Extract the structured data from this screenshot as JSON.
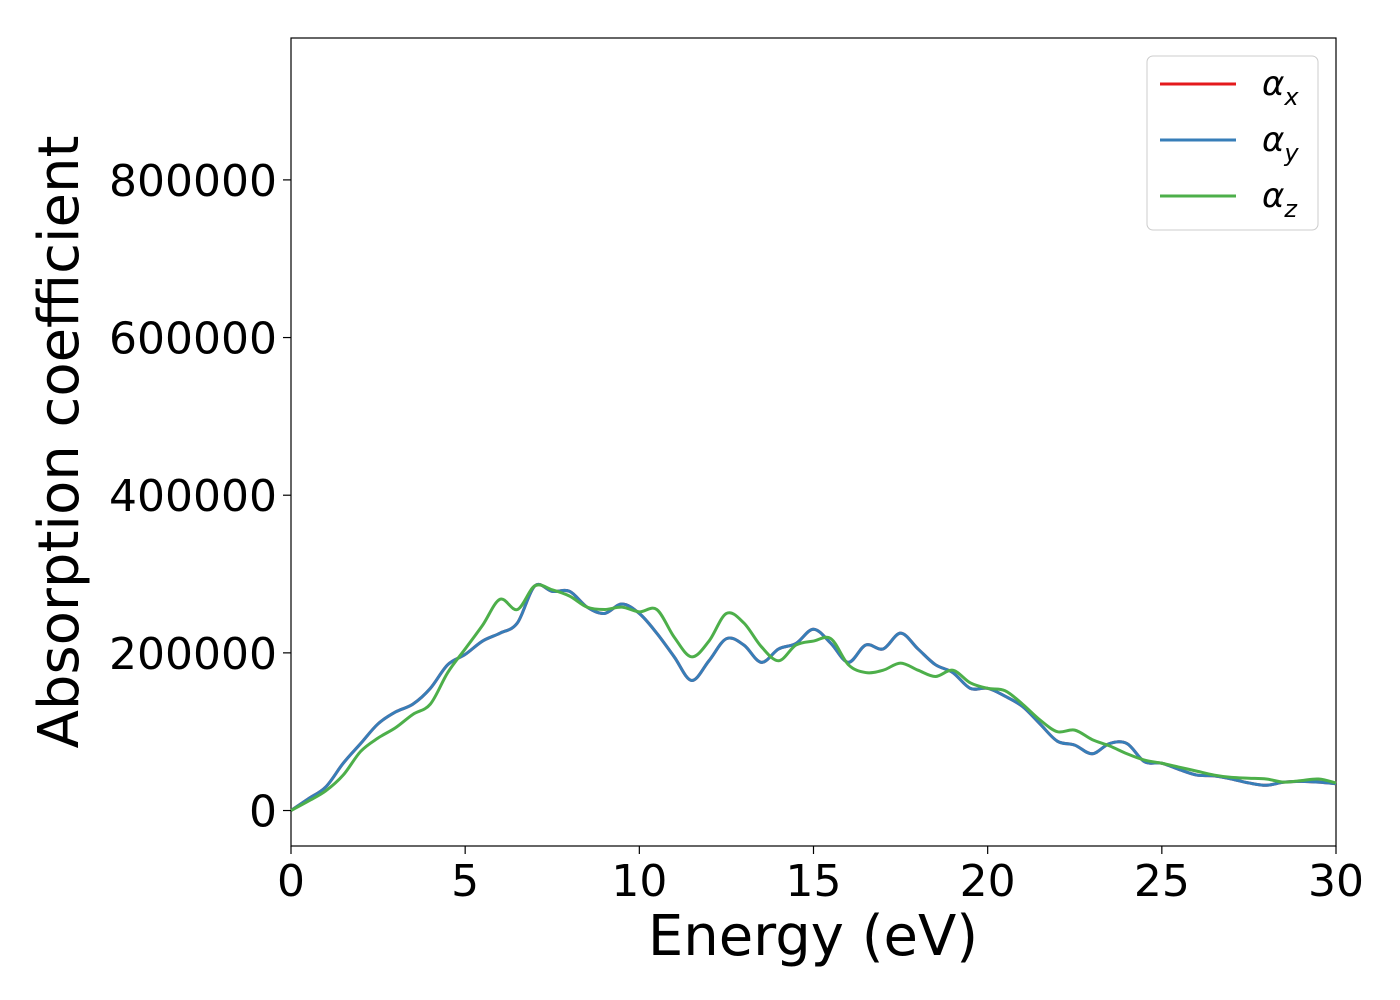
{
  "chart_data": {
    "type": "line",
    "xlabel": "Energy (eV)",
    "ylabel": "Absorption coefficient",
    "xlim": [
      0,
      30
    ],
    "ylim": [
      -45000,
      980000
    ],
    "xticks": [
      0,
      5,
      10,
      15,
      20,
      25,
      30
    ],
    "xtick_labels": [
      "0",
      "5",
      "10",
      "15",
      "20",
      "25",
      "30"
    ],
    "yticks": [
      0,
      200000,
      400000,
      600000,
      800000
    ],
    "ytick_labels": [
      "0",
      "200000",
      "400000",
      "600000",
      "800000"
    ],
    "grid": false,
    "legend": {
      "position": "top-right",
      "entries": [
        {
          "symbol": "α",
          "sub": "x",
          "color": "#e41a1c"
        },
        {
          "symbol": "α",
          "sub": "y",
          "color": "#377eb8"
        },
        {
          "symbol": "α",
          "sub": "z",
          "color": "#4daf4a"
        }
      ]
    },
    "x": [
      0,
      0.5,
      1,
      1.5,
      2,
      2.5,
      3,
      3.5,
      4,
      4.5,
      5,
      5.5,
      6,
      6.5,
      7,
      7.5,
      8,
      8.5,
      9,
      9.5,
      10,
      10.5,
      11,
      11.5,
      12,
      12.5,
      13,
      13.5,
      14,
      14.5,
      15,
      15.5,
      16,
      16.5,
      17,
      17.5,
      18,
      18.5,
      19,
      19.5,
      20,
      20.5,
      21,
      21.5,
      22,
      22.5,
      23,
      23.5,
      24,
      24.5,
      25,
      25.5,
      26,
      26.5,
      27,
      27.5,
      28,
      28.5,
      29,
      29.5,
      30
    ],
    "series": [
      {
        "name": "α_x",
        "color": "#e41a1c",
        "values": [
          0,
          15000,
          30000,
          60000,
          85000,
          110000,
          125000,
          135000,
          155000,
          185000,
          198000,
          215000,
          225000,
          238000,
          285000,
          278000,
          278000,
          258000,
          250000,
          262000,
          250000,
          225000,
          195000,
          165000,
          190000,
          218000,
          210000,
          188000,
          205000,
          212000,
          230000,
          212000,
          188000,
          210000,
          205000,
          225000,
          205000,
          185000,
          175000,
          155000,
          155000,
          145000,
          132000,
          110000,
          88000,
          83000,
          72000,
          85000,
          85000,
          62000,
          60000,
          52000,
          45000,
          44000,
          40000,
          35000,
          32000,
          36000,
          37000,
          36000,
          34000
        ]
      },
      {
        "name": "α_y",
        "color": "#377eb8",
        "values": [
          0,
          15000,
          30000,
          60000,
          85000,
          110000,
          125000,
          135000,
          155000,
          185000,
          198000,
          215000,
          225000,
          238000,
          285000,
          278000,
          278000,
          258000,
          250000,
          262000,
          250000,
          225000,
          195000,
          165000,
          190000,
          218000,
          210000,
          188000,
          205000,
          212000,
          230000,
          212000,
          188000,
          210000,
          205000,
          225000,
          205000,
          185000,
          175000,
          155000,
          155000,
          145000,
          132000,
          110000,
          88000,
          83000,
          72000,
          85000,
          85000,
          62000,
          60000,
          52000,
          45000,
          44000,
          40000,
          35000,
          32000,
          36000,
          37000,
          36000,
          34000
        ]
      },
      {
        "name": "α_z",
        "color": "#4daf4a",
        "values": [
          0,
          12000,
          25000,
          45000,
          75000,
          92000,
          105000,
          122000,
          135000,
          175000,
          205000,
          235000,
          268000,
          255000,
          285000,
          280000,
          272000,
          258000,
          255000,
          258000,
          252000,
          255000,
          220000,
          195000,
          215000,
          250000,
          238000,
          208000,
          190000,
          210000,
          215000,
          218000,
          185000,
          175000,
          178000,
          187000,
          178000,
          170000,
          178000,
          162000,
          155000,
          152000,
          135000,
          115000,
          100000,
          102000,
          90000,
          82000,
          72000,
          64000,
          60000,
          55000,
          50000,
          45000,
          42000,
          41000,
          40000,
          36000,
          38000,
          40000,
          35000
        ]
      }
    ]
  }
}
